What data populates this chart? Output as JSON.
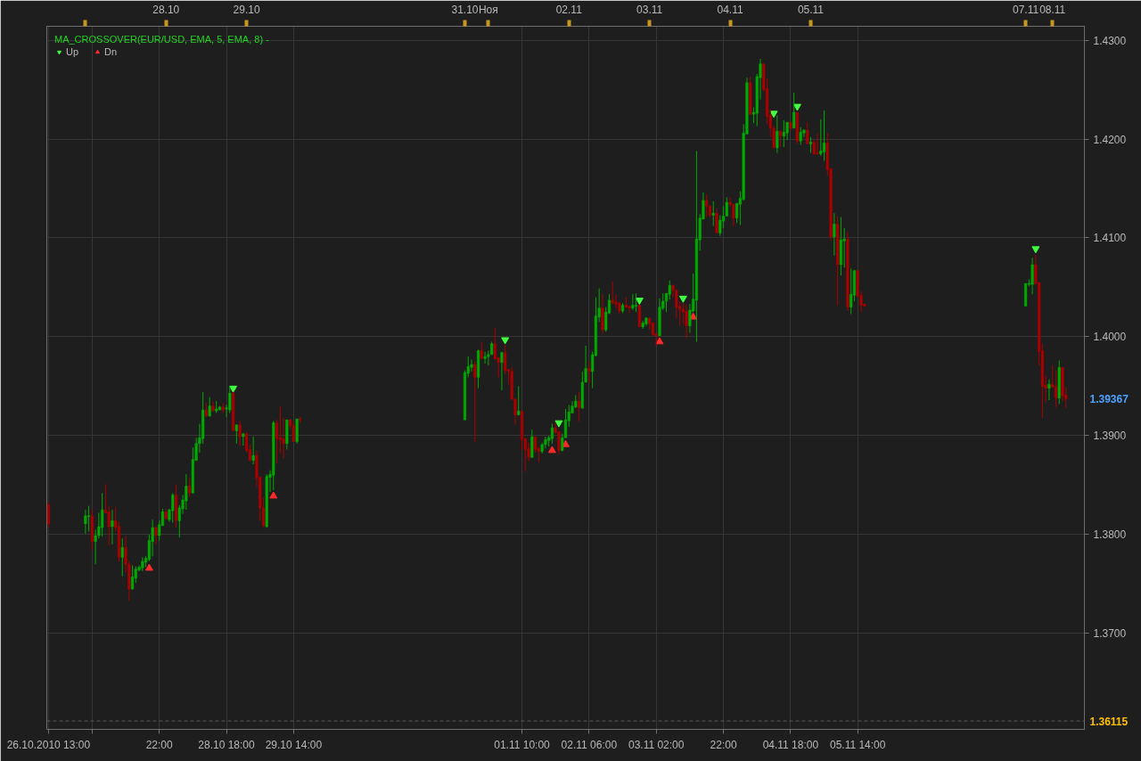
{
  "chart_data": {
    "type": "candlestick",
    "title": "MA_CROSSOVER(EUR/USD, EMA, 5, EMA, 8) -",
    "x": [
      "2010-10-26T13:00",
      "2010-10-27T00:00",
      "2010-10-27T01:00",
      "2010-10-27T02:00",
      "2010-10-27T03:00",
      "2010-10-27T04:00",
      "2010-10-27T05:00",
      "2010-10-27T06:00",
      "2010-10-27T07:00",
      "2010-10-27T08:00",
      "2010-10-27T09:00",
      "2010-10-27T10:00",
      "2010-10-27T11:00",
      "2010-10-27T12:00",
      "2010-10-27T13:00",
      "2010-10-27T14:00",
      "2010-10-27T15:00",
      "2010-10-27T16:00",
      "2010-10-27T17:00",
      "2010-10-27T18:00",
      "2010-10-27T19:00",
      "2010-10-27T20:00",
      "2010-10-27T21:00",
      "2010-10-27T22:00",
      "2010-10-27T23:00",
      "2010-10-28T00:00",
      "2010-10-28T01:00",
      "2010-10-28T02:00",
      "2010-10-28T03:00",
      "2010-10-28T04:00",
      "2010-10-28T05:00",
      "2010-10-28T06:00",
      "2010-10-28T07:00",
      "2010-10-28T08:00",
      "2010-10-28T09:00",
      "2010-10-28T10:00",
      "2010-10-28T11:00",
      "2010-10-28T12:00",
      "2010-10-28T13:00",
      "2010-10-28T14:00",
      "2010-10-28T15:00",
      "2010-10-28T16:00",
      "2010-10-28T17:00",
      "2010-10-28T18:00",
      "2010-10-28T19:00",
      "2010-10-28T20:00",
      "2010-10-28T21:00",
      "2010-10-28T22:00",
      "2010-10-28T23:00",
      "2010-10-29T00:00",
      "2010-10-29T01:00",
      "2010-10-29T02:00",
      "2010-10-29T03:00",
      "2010-10-29T04:00",
      "2010-10-29T05:00",
      "2010-10-29T06:00",
      "2010-10-29T07:00",
      "2010-10-29T08:00",
      "2010-10-29T09:00",
      "2010-10-29T10:00",
      "2010-10-29T11:00",
      "2010-10-29T12:00",
      "2010-10-29T13:00",
      "2010-10-29T14:00",
      "2010-10-29T15:00",
      "2010-10-29T16:00",
      "2010-10-31T17:00",
      "2010-10-31T18:00",
      "2010-10-31T19:00",
      "2010-10-31T20:00",
      "2010-10-31T21:00",
      "2010-10-31T22:00",
      "2010-10-31T23:00",
      "2010-11-01T00:00",
      "2010-11-01T01:00",
      "2010-11-01T02:00",
      "2010-11-01T03:00",
      "2010-11-01T04:00",
      "2010-11-01T05:00",
      "2010-11-01T06:00",
      "2010-11-01T07:00",
      "2010-11-01T08:00",
      "2010-11-01T09:00",
      "2010-11-01T10:00",
      "2010-11-01T11:00",
      "2010-11-01T12:00",
      "2010-11-01T13:00",
      "2010-11-01T14:00",
      "2010-11-01T15:00",
      "2010-11-01T16:00",
      "2010-11-01T17:00",
      "2010-11-01T18:00",
      "2010-11-01T19:00",
      "2010-11-01T20:00",
      "2010-11-01T21:00",
      "2010-11-01T22:00",
      "2010-11-01T23:00",
      "2010-11-02T00:00",
      "2010-11-02T01:00",
      "2010-11-02T02:00",
      "2010-11-02T03:00",
      "2010-11-02T04:00",
      "2010-11-02T05:00",
      "2010-11-02T06:00",
      "2010-11-02T07:00",
      "2010-11-02T08:00",
      "2010-11-02T09:00",
      "2010-11-02T10:00",
      "2010-11-02T11:00",
      "2010-11-02T12:00",
      "2010-11-02T13:00",
      "2010-11-02T14:00",
      "2010-11-02T15:00",
      "2010-11-02T16:00",
      "2010-11-02T17:00",
      "2010-11-02T18:00",
      "2010-11-02T19:00",
      "2010-11-02T20:00",
      "2010-11-02T21:00",
      "2010-11-02T22:00",
      "2010-11-02T23:00",
      "2010-11-03T00:00",
      "2010-11-03T01:00",
      "2010-11-03T02:00",
      "2010-11-03T03:00",
      "2010-11-03T04:00",
      "2010-11-03T05:00",
      "2010-11-03T06:00",
      "2010-11-03T07:00",
      "2010-11-03T08:00",
      "2010-11-03T09:00",
      "2010-11-03T10:00",
      "2010-11-03T11:00",
      "2010-11-03T12:00",
      "2010-11-03T13:00",
      "2010-11-03T14:00",
      "2010-11-03T15:00",
      "2010-11-03T16:00",
      "2010-11-03T17:00",
      "2010-11-03T18:00",
      "2010-11-03T19:00",
      "2010-11-03T20:00",
      "2010-11-03T21:00",
      "2010-11-03T22:00",
      "2010-11-03T23:00",
      "2010-11-04T00:00",
      "2010-11-04T01:00",
      "2010-11-04T02:00",
      "2010-11-04T03:00",
      "2010-11-04T04:00",
      "2010-11-04T05:00",
      "2010-11-04T06:00",
      "2010-11-04T07:00",
      "2010-11-04T08:00",
      "2010-11-04T09:00",
      "2010-11-04T10:00",
      "2010-11-04T11:00",
      "2010-11-04T12:00",
      "2010-11-04T13:00",
      "2010-11-04T14:00",
      "2010-11-04T15:00",
      "2010-11-04T16:00",
      "2010-11-04T17:00",
      "2010-11-04T18:00",
      "2010-11-04T19:00",
      "2010-11-04T20:00",
      "2010-11-04T21:00",
      "2010-11-04T22:00",
      "2010-11-04T23:00",
      "2010-11-05T00:00",
      "2010-11-05T01:00",
      "2010-11-05T02:00",
      "2010-11-05T03:00",
      "2010-11-05T04:00",
      "2010-11-05T05:00",
      "2010-11-05T06:00",
      "2010-11-05T07:00",
      "2010-11-05T08:00",
      "2010-11-05T09:00",
      "2010-11-05T10:00",
      "2010-11-05T11:00",
      "2010-11-05T12:00",
      "2010-11-05T13:00",
      "2010-11-05T14:00",
      "2010-11-05T15:00",
      "2010-11-05T16:00",
      "2010-11-07T16:00",
      "2010-11-07T17:00",
      "2010-11-07T18:00",
      "2010-11-07T19:00",
      "2010-11-07T20:00",
      "2010-11-07T21:00",
      "2010-11-07T22:00",
      "2010-11-07T23:00",
      "2010-11-08T00:00",
      "2010-11-08T01:00",
      "2010-11-08T02:00",
      "2010-11-08T03:00",
      "2010-11-08T04:00"
    ],
    "ohlc": [
      [
        1.383,
        1.3833,
        1.3807,
        1.3811
      ],
      [
        1.3811,
        1.3825,
        1.3801,
        1.3819
      ],
      [
        1.3818,
        1.3829,
        1.3803,
        1.3819
      ],
      [
        1.3819,
        1.3825,
        1.3784,
        1.3793
      ],
      [
        1.3793,
        1.3805,
        1.377,
        1.3799
      ],
      [
        1.3799,
        1.3822,
        1.3796,
        1.3808
      ],
      [
        1.3807,
        1.3842,
        1.3798,
        1.3825
      ],
      [
        1.3825,
        1.3851,
        1.3822,
        1.3822
      ],
      [
        1.3823,
        1.3829,
        1.3789,
        1.3808
      ],
      [
        1.3808,
        1.3825,
        1.379,
        1.3814
      ],
      [
        1.3814,
        1.3828,
        1.3803,
        1.3807
      ],
      [
        1.3808,
        1.3813,
        1.3773,
        1.3777
      ],
      [
        1.3777,
        1.3796,
        1.3758,
        1.3787
      ],
      [
        1.3787,
        1.3798,
        1.3762,
        1.377
      ],
      [
        1.377,
        1.3773,
        1.3733,
        1.3745
      ],
      [
        1.3745,
        1.3769,
        1.3744,
        1.3757
      ],
      [
        1.3756,
        1.3768,
        1.3751,
        1.3765
      ],
      [
        1.3764,
        1.3769,
        1.3763,
        1.3767
      ],
      [
        1.3766,
        1.3777,
        1.3763,
        1.3773
      ],
      [
        1.3772,
        1.3778,
        1.3767,
        1.3776
      ],
      [
        1.3775,
        1.38,
        1.3773,
        1.3794
      ],
      [
        1.3793,
        1.3815,
        1.3778,
        1.3807
      ],
      [
        1.3807,
        1.3808,
        1.379,
        1.3799
      ],
      [
        1.3799,
        1.3814,
        1.3794,
        1.381
      ],
      [
        1.3809,
        1.3826,
        1.3809,
        1.3823
      ],
      [
        1.3823,
        1.3826,
        1.3816,
        1.3816
      ],
      [
        1.3815,
        1.3826,
        1.3813,
        1.3825
      ],
      [
        1.3824,
        1.3842,
        1.3812,
        1.384
      ],
      [
        1.384,
        1.3851,
        1.3807,
        1.3814
      ],
      [
        1.3814,
        1.383,
        1.3797,
        1.3827
      ],
      [
        1.3826,
        1.384,
        1.3821,
        1.3835
      ],
      [
        1.3834,
        1.3861,
        1.3825,
        1.3849
      ],
      [
        1.3849,
        1.3857,
        1.3838,
        1.3842
      ],
      [
        1.3842,
        1.3888,
        1.3842,
        1.3876
      ],
      [
        1.3875,
        1.3898,
        1.3875,
        1.3892
      ],
      [
        1.3892,
        1.3912,
        1.3883,
        1.3898
      ],
      [
        1.3897,
        1.3944,
        1.3892,
        1.3926
      ],
      [
        1.3926,
        1.3933,
        1.3919,
        1.392
      ],
      [
        1.392,
        1.3939,
        1.3919,
        1.393
      ],
      [
        1.393,
        1.3935,
        1.3925,
        1.3925
      ],
      [
        1.3925,
        1.3935,
        1.3923,
        1.3927
      ],
      [
        1.3926,
        1.393,
        1.3926,
        1.3929
      ],
      [
        1.3929,
        1.3933,
        1.3923,
        1.3926
      ],
      [
        1.3927,
        1.3931,
        1.3919,
        1.3928
      ],
      [
        1.3926,
        1.395,
        1.3923,
        1.3943
      ],
      [
        1.3943,
        1.3944,
        1.3905,
        1.3905
      ],
      [
        1.3905,
        1.3911,
        1.3892,
        1.3911
      ],
      [
        1.3911,
        1.3915,
        1.389,
        1.3899
      ],
      [
        1.3899,
        1.3902,
        1.389,
        1.3902
      ],
      [
        1.3902,
        1.3904,
        1.3883,
        1.3885
      ],
      [
        1.3886,
        1.3891,
        1.3874,
        1.3875
      ],
      [
        1.3875,
        1.3899,
        1.3871,
        1.388
      ],
      [
        1.388,
        1.3885,
        1.3848,
        1.3857
      ],
      [
        1.3858,
        1.3859,
        1.3814,
        1.3827
      ],
      [
        1.3827,
        1.3837,
        1.3807,
        1.3809
      ],
      [
        1.3808,
        1.3861,
        1.3807,
        1.3859
      ],
      [
        1.3858,
        1.3865,
        1.3843,
        1.3861
      ],
      [
        1.386,
        1.3915,
        1.3845,
        1.3913
      ],
      [
        1.3913,
        1.3916,
        1.3872,
        1.3897
      ],
      [
        1.3898,
        1.393,
        1.3882,
        1.3896
      ],
      [
        1.3897,
        1.3918,
        1.3877,
        1.3892
      ],
      [
        1.3892,
        1.3916,
        1.3886,
        1.3916
      ],
      [
        1.3916,
        1.3917,
        1.3907,
        1.391
      ],
      [
        1.391,
        1.3914,
        1.3894,
        1.3894
      ],
      [
        1.3894,
        1.3917,
        1.3892,
        1.3917
      ],
      [
        1.3917,
        1.3919,
        1.3913,
        1.3916
      ],
      [
        1.3916,
        1.3966,
        1.3916,
        1.3964
      ],
      [
        1.3963,
        1.398,
        1.3959,
        1.397
      ],
      [
        1.3969,
        1.3977,
        1.3965,
        1.3972
      ],
      [
        1.3972,
        1.3975,
        1.3894,
        1.3959
      ],
      [
        1.3959,
        1.3987,
        1.3948,
        1.3986
      ],
      [
        1.3986,
        1.3995,
        1.3977,
        1.3978
      ],
      [
        1.3978,
        1.3985,
        1.3973,
        1.398
      ],
      [
        1.398,
        1.3986,
        1.3971,
        1.3982
      ],
      [
        1.3982,
        1.3995,
        1.3982,
        1.3993
      ],
      [
        1.3993,
        1.4009,
        1.3977,
        1.3978
      ],
      [
        1.3979,
        1.3979,
        1.3959,
        1.3974
      ],
      [
        1.3974,
        1.3985,
        1.3946,
        1.3984
      ],
      [
        1.3984,
        1.3992,
        1.3962,
        1.3966
      ],
      [
        1.3967,
        1.3967,
        1.3952,
        1.3965
      ],
      [
        1.3965,
        1.3969,
        1.3936,
        1.3937
      ],
      [
        1.3937,
        1.3938,
        1.3911,
        1.3921
      ],
      [
        1.3921,
        1.395,
        1.3921,
        1.3925
      ],
      [
        1.3925,
        1.3925,
        1.3886,
        1.3896
      ],
      [
        1.3897,
        1.3897,
        1.3864,
        1.3886
      ],
      [
        1.3887,
        1.3893,
        1.3874,
        1.3878
      ],
      [
        1.3878,
        1.3906,
        1.3878,
        1.3899
      ],
      [
        1.3899,
        1.3899,
        1.3883,
        1.3886
      ],
      [
        1.3887,
        1.3889,
        1.3873,
        1.3884
      ],
      [
        1.3884,
        1.3893,
        1.3882,
        1.3891
      ],
      [
        1.3891,
        1.3899,
        1.3887,
        1.3896
      ],
      [
        1.3895,
        1.39,
        1.3889,
        1.3898
      ],
      [
        1.3897,
        1.3912,
        1.3892,
        1.3908
      ],
      [
        1.3908,
        1.3913,
        1.3903,
        1.3903
      ],
      [
        1.3904,
        1.3904,
        1.3881,
        1.3885
      ],
      [
        1.3885,
        1.3902,
        1.3884,
        1.3898
      ],
      [
        1.3898,
        1.3927,
        1.3898,
        1.3916
      ],
      [
        1.3915,
        1.3931,
        1.3909,
        1.3924
      ],
      [
        1.3923,
        1.3935,
        1.3923,
        1.393
      ],
      [
        1.3929,
        1.3941,
        1.3928,
        1.3935
      ],
      [
        1.3935,
        1.3944,
        1.3914,
        1.3928
      ],
      [
        1.3928,
        1.3965,
        1.3927,
        1.3954
      ],
      [
        1.3954,
        1.3991,
        1.3954,
        1.3968
      ],
      [
        1.3968,
        1.3975,
        1.3953,
        1.3965
      ],
      [
        1.3965,
        1.3985,
        1.3948,
        1.3982
      ],
      [
        1.3981,
        1.404,
        1.398,
        1.4021
      ],
      [
        1.402,
        1.4049,
        1.4015,
        1.4029
      ],
      [
        1.4029,
        1.4043,
        1.4003,
        1.4007
      ],
      [
        1.4007,
        1.403,
        1.4005,
        1.4025
      ],
      [
        1.4024,
        1.4043,
        1.4023,
        1.4037
      ],
      [
        1.4037,
        1.4056,
        1.4034,
        1.4034
      ],
      [
        1.4035,
        1.4043,
        1.4029,
        1.4033
      ],
      [
        1.4034,
        1.4035,
        1.4023,
        1.4026
      ],
      [
        1.4026,
        1.4034,
        1.4024,
        1.4032
      ],
      [
        1.4032,
        1.404,
        1.403,
        1.403
      ],
      [
        1.4031,
        1.4031,
        1.4024,
        1.4029
      ],
      [
        1.4029,
        1.4043,
        1.4027,
        1.4032
      ],
      [
        1.4031,
        1.4044,
        1.4025,
        1.4032
      ],
      [
        1.4032,
        1.4032,
        1.401,
        1.401
      ],
      [
        1.401,
        1.4016,
        1.4008,
        1.4014
      ],
      [
        1.4013,
        1.402,
        1.4011,
        1.4019
      ],
      [
        1.4019,
        1.4019,
        1.4008,
        1.4013
      ],
      [
        1.4014,
        1.4015,
        1.4001,
        1.4002
      ],
      [
        1.4003,
        1.4003,
        1.3991,
        1.4001
      ],
      [
        1.4001,
        1.4039,
        1.4001,
        1.403
      ],
      [
        1.4029,
        1.4044,
        1.4027,
        1.4036
      ],
      [
        1.4036,
        1.4044,
        1.4025,
        1.4044
      ],
      [
        1.4043,
        1.4057,
        1.4038,
        1.4052
      ],
      [
        1.4052,
        1.4053,
        1.404,
        1.4047
      ],
      [
        1.4047,
        1.4048,
        1.4019,
        1.403
      ],
      [
        1.4031,
        1.4035,
        1.4011,
        1.4028
      ],
      [
        1.4028,
        1.4034,
        1.4013,
        1.4025
      ],
      [
        1.4026,
        1.4033,
        1.3998,
        1.4011
      ],
      [
        1.4011,
        1.4033,
        1.4004,
        1.4027
      ],
      [
        1.4026,
        1.4064,
        1.4025,
        1.4038
      ],
      [
        1.4037,
        1.4188,
        1.3995,
        1.4099
      ],
      [
        1.4098,
        1.4124,
        1.4087,
        1.412
      ],
      [
        1.4119,
        1.4146,
        1.4119,
        1.4138
      ],
      [
        1.4138,
        1.4144,
        1.4121,
        1.4132
      ],
      [
        1.4132,
        1.4133,
        1.4121,
        1.4123
      ],
      [
        1.4123,
        1.4137,
        1.4112,
        1.4125
      ],
      [
        1.4125,
        1.413,
        1.4105,
        1.4105
      ],
      [
        1.4105,
        1.4123,
        1.4102,
        1.4118
      ],
      [
        1.4117,
        1.4132,
        1.411,
        1.4122
      ],
      [
        1.4122,
        1.4141,
        1.4122,
        1.4136
      ],
      [
        1.4136,
        1.4141,
        1.4132,
        1.4134
      ],
      [
        1.4134,
        1.4134,
        1.4112,
        1.412
      ],
      [
        1.412,
        1.4135,
        1.4115,
        1.4135
      ],
      [
        1.4134,
        1.4147,
        1.4113,
        1.414
      ],
      [
        1.4139,
        1.4215,
        1.4138,
        1.4206
      ],
      [
        1.4205,
        1.4262,
        1.4205,
        1.4257
      ],
      [
        1.4257,
        1.4263,
        1.4224,
        1.4225
      ],
      [
        1.4225,
        1.4232,
        1.4216,
        1.4227
      ],
      [
        1.4226,
        1.4266,
        1.4213,
        1.4263
      ],
      [
        1.4262,
        1.4281,
        1.424,
        1.4276
      ],
      [
        1.4276,
        1.4276,
        1.4248,
        1.425
      ],
      [
        1.4251,
        1.4261,
        1.4215,
        1.4223
      ],
      [
        1.4224,
        1.423,
        1.4202,
        1.4211
      ],
      [
        1.4211,
        1.4213,
        1.4191,
        1.4191
      ],
      [
        1.4191,
        1.4224,
        1.4186,
        1.4208
      ],
      [
        1.4208,
        1.4208,
        1.4192,
        1.4203
      ],
      [
        1.4203,
        1.4219,
        1.4192,
        1.4207
      ],
      [
        1.4206,
        1.4217,
        1.4199,
        1.4217
      ],
      [
        1.4217,
        1.4217,
        1.4209,
        1.4211
      ],
      [
        1.4211,
        1.4247,
        1.4211,
        1.4227
      ],
      [
        1.4227,
        1.4227,
        1.4195,
        1.4198
      ],
      [
        1.4198,
        1.4212,
        1.4194,
        1.4207
      ],
      [
        1.4206,
        1.421,
        1.4202,
        1.4209
      ],
      [
        1.4209,
        1.4217,
        1.4195,
        1.4195
      ],
      [
        1.4195,
        1.4202,
        1.4186,
        1.4197
      ],
      [
        1.4197,
        1.4199,
        1.4184,
        1.4185
      ],
      [
        1.4186,
        1.4205,
        1.4184,
        1.4185
      ],
      [
        1.4185,
        1.422,
        1.4183,
        1.4188
      ],
      [
        1.4187,
        1.4229,
        1.4178,
        1.4196
      ],
      [
        1.4196,
        1.4206,
        1.4163,
        1.4169
      ],
      [
        1.417,
        1.4171,
        1.4097,
        1.4101
      ],
      [
        1.4101,
        1.4125,
        1.4082,
        1.4114
      ],
      [
        1.4114,
        1.4122,
        1.4032,
        1.4073
      ],
      [
        1.4073,
        1.4121,
        1.4062,
        1.4098
      ],
      [
        1.4097,
        1.411,
        1.407,
        1.4099
      ],
      [
        1.4099,
        1.4106,
        1.4026,
        1.403
      ],
      [
        1.403,
        1.4069,
        1.4023,
        1.4043
      ],
      [
        1.4042,
        1.4067,
        1.4036,
        1.4067
      ],
      [
        1.4067,
        1.4067,
        1.404,
        1.4041
      ],
      [
        1.4042,
        1.4046,
        1.4025,
        1.4032
      ],
      [
        1.4033,
        1.4033,
        1.4031,
        1.4031
      ],
      [
        1.4031,
        1.4054,
        1.4031,
        1.4054
      ],
      [
        1.4053,
        1.4058,
        1.4051,
        1.4054
      ],
      [
        1.4053,
        1.408,
        1.4043,
        1.4073
      ],
      [
        1.4073,
        1.4083,
        1.4052,
        1.4054
      ],
      [
        1.4055,
        1.4055,
        1.3971,
        1.3985
      ],
      [
        1.3986,
        1.3993,
        1.3918,
        1.395
      ],
      [
        1.3951,
        1.396,
        1.3934,
        1.3948
      ],
      [
        1.3948,
        1.3957,
        1.3936,
        1.3952
      ],
      [
        1.3952,
        1.3971,
        1.3949,
        1.3949
      ],
      [
        1.395,
        1.3966,
        1.3929,
        1.3938
      ],
      [
        1.3938,
        1.3976,
        1.3932,
        1.3969
      ],
      [
        1.3969,
        1.3969,
        1.3935,
        1.394
      ],
      [
        1.3941,
        1.3949,
        1.3928,
        1.3937
      ]
    ],
    "colors": [
      "#aa0000",
      "#00aa00",
      "#00aa00",
      "#aa0000",
      "#00aa00",
      "#00aa00",
      "#00aa00",
      "#aa0000",
      "#aa0000",
      "#00aa00",
      "#aa0000",
      "#aa0000",
      "#00aa00",
      "#aa0000",
      "#aa0000",
      "#00aa00",
      "#00aa00",
      "#00aa00",
      "#00aa00",
      "#00aa00",
      "#00aa00",
      "#00aa00",
      "#aa0000",
      "#00aa00",
      "#00aa00",
      "#aa0000",
      "#00aa00",
      "#00aa00",
      "#aa0000",
      "#00aa00",
      "#00aa00",
      "#00aa00",
      "#aa0000",
      "#00aa00",
      "#00aa00",
      "#00aa00",
      "#00aa00",
      "#aa0000",
      "#00aa00",
      "#aa0000",
      "#00aa00",
      "#00aa00",
      "#aa0000",
      "#00aa00",
      "#00aa00",
      "#aa0000",
      "#00aa00",
      "#aa0000",
      "#00aa00",
      "#aa0000",
      "#aa0000",
      "#00aa00",
      "#aa0000",
      "#aa0000",
      "#aa0000",
      "#00aa00",
      "#00aa00",
      "#00aa00",
      "#aa0000",
      "#aa0000",
      "#aa0000",
      "#00aa00",
      "#aa0000",
      "#aa0000",
      "#00aa00",
      "#aa0000",
      "#00aa00",
      "#00aa00",
      "#00aa00",
      "#aa0000",
      "#00aa00",
      "#aa0000",
      "#00aa00",
      "#00aa00",
      "#00aa00",
      "#aa0000",
      "#aa0000",
      "#00aa00",
      "#aa0000",
      "#aa0000",
      "#aa0000",
      "#aa0000",
      "#00aa00",
      "#aa0000",
      "#aa0000",
      "#aa0000",
      "#00aa00",
      "#aa0000",
      "#aa0000",
      "#00aa00",
      "#00aa00",
      "#00aa00",
      "#00aa00",
      "#aa0000",
      "#aa0000",
      "#00aa00",
      "#00aa00",
      "#00aa00",
      "#00aa00",
      "#00aa00",
      "#aa0000",
      "#00aa00",
      "#00aa00",
      "#aa0000",
      "#00aa00",
      "#00aa00",
      "#00aa00",
      "#aa0000",
      "#00aa00",
      "#00aa00",
      "#aa0000",
      "#aa0000",
      "#aa0000",
      "#00aa00",
      "#aa0000",
      "#aa0000",
      "#00aa00",
      "#00aa00",
      "#aa0000",
      "#00aa00",
      "#00aa00",
      "#aa0000",
      "#aa0000",
      "#aa0000",
      "#00aa00",
      "#00aa00",
      "#00aa00",
      "#00aa00",
      "#aa0000",
      "#aa0000",
      "#aa0000",
      "#aa0000",
      "#aa0000",
      "#00aa00",
      "#00aa00",
      "#00aa00",
      "#00aa00",
      "#00aa00",
      "#aa0000",
      "#aa0000",
      "#00aa00",
      "#aa0000",
      "#00aa00",
      "#00aa00",
      "#00aa00",
      "#aa0000",
      "#aa0000",
      "#00aa00",
      "#00aa00",
      "#00aa00",
      "#00aa00",
      "#aa0000",
      "#00aa00",
      "#00aa00",
      "#00aa00",
      "#aa0000",
      "#aa0000",
      "#aa0000",
      "#aa0000",
      "#00aa00",
      "#aa0000",
      "#00aa00",
      "#00aa00",
      "#aa0000",
      "#00aa00",
      "#aa0000",
      "#00aa00",
      "#00aa00",
      "#aa0000",
      "#00aa00",
      "#aa0000",
      "#aa0000",
      "#00aa00",
      "#00aa00",
      "#aa0000",
      "#aa0000",
      "#00aa00",
      "#aa0000",
      "#00aa00",
      "#00aa00",
      "#aa0000",
      "#00aa00",
      "#00aa00",
      "#aa0000",
      "#aa0000",
      "#aa0000",
      "#00aa00",
      "#00aa00",
      "#00aa00",
      "#aa0000",
      "#aa0000",
      "#aa0000",
      "#aa0000",
      "#00aa00",
      "#aa0000",
      "#aa0000",
      "#00aa00",
      "#aa0000",
      "#aa0000"
    ],
    "series": [
      {
        "name": "Up",
        "type": "scatter",
        "color": "#40ff40",
        "marker": "triangle",
        "x": [
          "2010-10-28T20:00",
          "2010-11-01T05:00",
          "2010-11-01T21:00",
          "2010-11-02T21:00",
          "2010-11-03T10:00",
          "2010-11-04T13:00",
          "2010-11-04T20:00",
          "2010-11-07T19:00"
        ],
        "values": [
          1.3948,
          1.3997,
          1.3913,
          1.4037,
          1.4039,
          1.4226,
          1.4233,
          1.4089
        ]
      },
      {
        "name": "Dn",
        "type": "scatter",
        "color": "#ff2a2a",
        "marker": "triangle",
        "x": [
          "2010-10-27T19:00",
          "2010-10-29T08:00",
          "2010-11-01T19:00",
          "2010-11-01T23:00",
          "2010-11-03T03:00",
          "2010-11-03T13:00"
        ],
        "values": [
          1.3766,
          1.3839,
          1.3885,
          1.3891,
          1.3995,
          1.402
        ]
      }
    ],
    "xlim": [
      "2010-10-26T12:30",
      "2010-11-08T09:30"
    ],
    "xticks": [
      {
        "value": "2010-10-26T13:00",
        "label": "26.10.2010 13:00"
      },
      {
        "value": "2010-10-27T02:00",
        "label": null
      },
      {
        "value": "2010-10-27T22:00",
        "label": "22:00"
      },
      {
        "value": "2010-10-28T18:00",
        "label": "28.10 18:00"
      },
      {
        "value": "2010-10-29T14:00",
        "label": "29.10 14:00"
      },
      {
        "value": "2010-11-01T10:00",
        "label": "01.11 10:00"
      },
      {
        "value": "2010-11-02T06:00",
        "label": "02.11 06:00"
      },
      {
        "value": "2010-11-03T02:00",
        "label": "03.11 02:00"
      },
      {
        "value": "2010-11-03T22:00",
        "label": "22:00"
      },
      {
        "value": "2010-11-04T18:00",
        "label": "04.11 18:00"
      },
      {
        "value": "2010-11-05T14:00",
        "label": "05.11 14:00"
      }
    ],
    "x2lim": [
      "2010-10-26T12:30",
      "2010-11-08T09:30"
    ],
    "x2ticks": [
      {
        "value": "2010-10-27T00:00",
        "label": null
      },
      {
        "value": "2010-10-28T00:00",
        "label": "28.10"
      },
      {
        "value": "2010-10-29T00:00",
        "label": "29.10"
      },
      {
        "value": "2010-10-31T17:00",
        "label": "31.10"
      },
      {
        "value": "2010-11-01T00:00",
        "label": "Ноя"
      },
      {
        "value": "2010-11-02T00:00",
        "label": "02.11"
      },
      {
        "value": "2010-11-03T00:00",
        "label": "03.11"
      },
      {
        "value": "2010-11-04T00:00",
        "label": "04.11"
      },
      {
        "value": "2010-11-05T00:00",
        "label": "05.11"
      },
      {
        "value": "2010-11-07T16:00",
        "label": "07.11"
      },
      {
        "value": "2010-11-08T00:00",
        "label": "08.11"
      }
    ],
    "ylim": [
      1.3603,
      1.4314
    ],
    "yticks": [
      {
        "value": 1.37,
        "label": "1.3700"
      },
      {
        "value": 1.38,
        "label": "1.3800"
      },
      {
        "value": 1.39,
        "label": "1.3900"
      },
      {
        "value": 1.4,
        "label": "1.4000"
      },
      {
        "value": 1.41,
        "label": "1.4100"
      },
      {
        "value": 1.42,
        "label": "1.4200"
      },
      {
        "value": 1.43,
        "label": "1.4300"
      }
    ],
    "ref_lines": [
      {
        "axis": "y",
        "value": 1.36115,
        "label": "1.36115",
        "color": "#5c5c5c",
        "line_style": "dashed"
      }
    ],
    "annotations": [
      "1.39367"
    ],
    "grid": true,
    "legend": "top left"
  }
}
